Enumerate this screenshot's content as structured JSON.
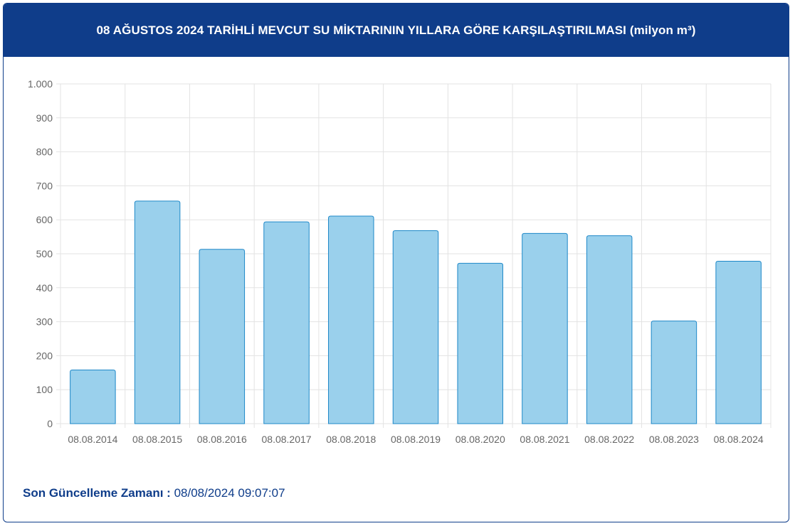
{
  "header": {
    "title": "08 AĞUSTOS 2024 TARİHLİ MEVCUT SU MİKTARININ YILLARA GÖRE KARŞILAŞTIRILMASI (milyon m³)"
  },
  "footer": {
    "label": "Son Güncelleme Zamanı :",
    "value": "08/08/2024 09:07:07"
  },
  "colors": {
    "header_bg": "#0f3d8a",
    "bar_fill": "#9ad0ec",
    "bar_stroke": "#1e88c8",
    "grid": "#e3e3e3"
  },
  "chart_data": {
    "type": "bar",
    "title": "",
    "xlabel": "",
    "ylabel": "",
    "categories": [
      "08.08.2014",
      "08.08.2015",
      "08.08.2016",
      "08.08.2017",
      "08.08.2018",
      "08.08.2019",
      "08.08.2020",
      "08.08.2021",
      "08.08.2022",
      "08.08.2023",
      "08.08.2024"
    ],
    "values": [
      158,
      655,
      513,
      594,
      611,
      568,
      472,
      560,
      553,
      302,
      478
    ],
    "ylim": [
      0,
      1000
    ],
    "yticks": [
      0,
      100,
      200,
      300,
      400,
      500,
      600,
      700,
      800,
      900,
      1000
    ],
    "ytick_labels": [
      "0",
      "100",
      "200",
      "300",
      "400",
      "500",
      "600",
      "700",
      "800",
      "900",
      "1.000"
    ],
    "grid": true,
    "legend": "none"
  }
}
